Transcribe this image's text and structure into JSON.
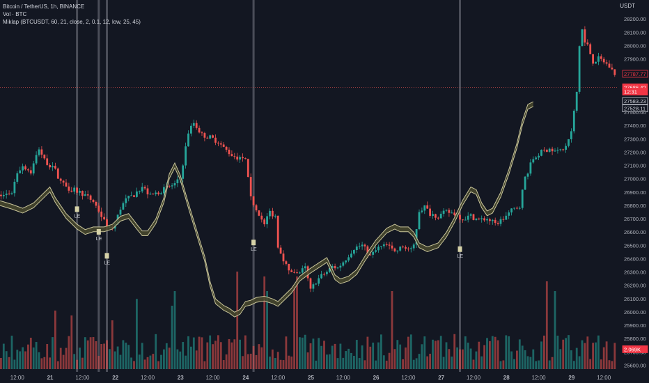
{
  "header": {
    "title_line": "Bitcoin / TetherUS, 1h, BINANCE",
    "volume_line": "Vol · BTC",
    "indicator_line": "Miklap (BTCUSDT, 60, 21, close, 2, 0.1, 12, low, 25, 45)",
    "currency": "USDT"
  },
  "colors": {
    "background": "#131722",
    "up": "#26a69a",
    "down": "#ef5350",
    "band_fill": "#4a4a2e",
    "band_line": "#c8c49a",
    "vline": "#5d606b",
    "label": "#b2b5be"
  },
  "chart_data": {
    "type": "candlestick",
    "title": "Bitcoin / TetherUS, 1h, BINANCE",
    "y_range": [
      25550,
      28300
    ],
    "y_ticks": [
      25600,
      25700,
      25800,
      25900,
      26000,
      26100,
      26200,
      26300,
      26400,
      26500,
      26600,
      26700,
      26800,
      26900,
      27000,
      27100,
      27200,
      27300,
      27400,
      27500,
      27600,
      27700,
      27800,
      27900,
      28000,
      28100,
      28200
    ],
    "x_tick_labels": [
      "12:00",
      "21",
      "12:00",
      "22",
      "12:00",
      "23",
      "12:00",
      "24",
      "12:00",
      "25",
      "12:00",
      "26",
      "12:00",
      "27",
      "12:00",
      "28",
      "12:00",
      "29",
      "12:00"
    ],
    "x_tick_hour_index": [
      12,
      24,
      36,
      48,
      60,
      72,
      84,
      96,
      108,
      120,
      132,
      144,
      156,
      168,
      180,
      192,
      204,
      216,
      228
    ],
    "close_path": [
      [
        0,
        26880
      ],
      [
        6,
        26870
      ],
      [
        10,
        26900
      ],
      [
        12,
        27050
      ],
      [
        14,
        27100
      ],
      [
        17,
        27050
      ],
      [
        20,
        27230
      ],
      [
        22,
        27140
      ],
      [
        26,
        27060
      ],
      [
        28,
        26980
      ],
      [
        31,
        26930
      ],
      [
        36,
        26890
      ],
      [
        38,
        26860
      ],
      [
        40,
        26830
      ],
      [
        42,
        26760
      ],
      [
        44,
        26680
      ],
      [
        46,
        26620
      ],
      [
        48,
        26660
      ],
      [
        50,
        26780
      ],
      [
        52,
        26840
      ],
      [
        55,
        26880
      ],
      [
        58,
        26940
      ],
      [
        61,
        26870
      ],
      [
        64,
        26900
      ],
      [
        67,
        26930
      ],
      [
        70,
        26960
      ],
      [
        72,
        27000
      ],
      [
        75,
        27350
      ],
      [
        77,
        27420
      ],
      [
        80,
        27330
      ],
      [
        83,
        27310
      ],
      [
        86,
        27280
      ],
      [
        88,
        27230
      ],
      [
        91,
        27180
      ],
      [
        94,
        27150
      ],
      [
        96,
        27140
      ],
      [
        98,
        26850
      ],
      [
        101,
        26740
      ],
      [
        103,
        26650
      ],
      [
        105,
        26750
      ],
      [
        107,
        26720
      ],
      [
        108,
        26500
      ],
      [
        110,
        26400
      ],
      [
        112,
        26300
      ],
      [
        115,
        26280
      ],
      [
        118,
        26330
      ],
      [
        120,
        26160
      ],
      [
        122,
        26230
      ],
      [
        124,
        26270
      ],
      [
        126,
        26300
      ],
      [
        128,
        26340
      ],
      [
        130,
        26330
      ],
      [
        133,
        26400
      ],
      [
        136,
        26480
      ],
      [
        139,
        26500
      ],
      [
        142,
        26420
      ],
      [
        145,
        26480
      ],
      [
        148,
        26500
      ],
      [
        151,
        26450
      ],
      [
        154,
        26490
      ],
      [
        157,
        26460
      ],
      [
        158,
        26500
      ],
      [
        160,
        26760
      ],
      [
        162,
        26790
      ],
      [
        164,
        26740
      ],
      [
        167,
        26720
      ],
      [
        170,
        26750
      ],
      [
        173,
        26740
      ],
      [
        176,
        26700
      ],
      [
        179,
        26720
      ],
      [
        182,
        26690
      ],
      [
        185,
        26700
      ],
      [
        188,
        26660
      ],
      [
        191,
        26700
      ],
      [
        194,
        26760
      ],
      [
        197,
        26800
      ],
      [
        199,
        27010
      ],
      [
        202,
        27150
      ],
      [
        205,
        27200
      ],
      [
        208,
        27230
      ],
      [
        211,
        27200
      ],
      [
        214,
        27240
      ],
      [
        216,
        27350
      ],
      [
        218,
        27650
      ],
      [
        219,
        28000
      ],
      [
        220,
        28120
      ],
      [
        221,
        28020
      ],
      [
        222,
        28000
      ],
      [
        224,
        27880
      ],
      [
        226,
        27900
      ],
      [
        228,
        27880
      ],
      [
        230,
        27840
      ],
      [
        232,
        27790
      ]
    ],
    "band_mid": [
      [
        0,
        26820
      ],
      [
        6,
        26815
      ],
      [
        10,
        26790
      ],
      [
        14,
        26760
      ],
      [
        18,
        26800
      ],
      [
        22,
        26880
      ],
      [
        24,
        26920
      ],
      [
        26,
        26840
      ],
      [
        30,
        26720
      ],
      [
        34,
        26640
      ],
      [
        37,
        26600
      ],
      [
        40,
        26620
      ],
      [
        44,
        26620
      ],
      [
        47,
        26640
      ],
      [
        50,
        26700
      ],
      [
        53,
        26720
      ],
      [
        56,
        26640
      ],
      [
        58,
        26590
      ],
      [
        60,
        26590
      ],
      [
        63,
        26680
      ],
      [
        66,
        26840
      ],
      [
        68,
        27020
      ],
      [
        70,
        27100
      ],
      [
        72,
        27010
      ],
      [
        75,
        26800
      ],
      [
        78,
        26600
      ],
      [
        81,
        26400
      ],
      [
        83,
        26210
      ],
      [
        85,
        26080
      ],
      [
        88,
        26030
      ],
      [
        90,
        26010
      ],
      [
        92,
        25980
      ],
      [
        94,
        26000
      ],
      [
        96,
        26060
      ],
      [
        98,
        26070
      ],
      [
        100,
        26090
      ],
      [
        103,
        26100
      ],
      [
        106,
        26080
      ],
      [
        108,
        26060
      ],
      [
        110,
        26100
      ],
      [
        113,
        26160
      ],
      [
        116,
        26250
      ],
      [
        118,
        26280
      ],
      [
        120,
        26310
      ],
      [
        123,
        26350
      ],
      [
        126,
        26390
      ],
      [
        129,
        26260
      ],
      [
        131,
        26230
      ],
      [
        134,
        26250
      ],
      [
        137,
        26300
      ],
      [
        140,
        26400
      ],
      [
        144,
        26520
      ],
      [
        148,
        26610
      ],
      [
        151,
        26640
      ],
      [
        153,
        26620
      ],
      [
        156,
        26620
      ],
      [
        158,
        26580
      ],
      [
        160,
        26500
      ],
      [
        163,
        26470
      ],
      [
        167,
        26500
      ],
      [
        170,
        26580
      ],
      [
        173,
        26690
      ],
      [
        176,
        26820
      ],
      [
        179,
        26920
      ],
      [
        181,
        26900
      ],
      [
        183,
        26800
      ],
      [
        185,
        26740
      ],
      [
        187,
        26760
      ],
      [
        190,
        26880
      ],
      [
        193,
        27050
      ],
      [
        196,
        27250
      ],
      [
        198,
        27420
      ],
      [
        200,
        27540
      ],
      [
        202,
        27560
      ]
    ],
    "band_width": 36,
    "band_x_scale": 1.0,
    "vertical_lines_x_index": [
      34,
      42,
      45,
      99,
      175
    ],
    "le_markers": [
      {
        "x": 34,
        "y": 26740,
        "label": "LE"
      },
      {
        "x": 42,
        "y": 26570,
        "label": "LE"
      },
      {
        "x": 45,
        "y": 26390,
        "label": "LE"
      },
      {
        "x": 99,
        "y": 26490,
        "label": "LE"
      },
      {
        "x": 175,
        "y": 26440,
        "label": "LE"
      }
    ],
    "price_tags": [
      {
        "price": 27787.77,
        "text": "27787.77",
        "style": "red-outline"
      },
      {
        "price": 27686.42,
        "text": "27686.42",
        "style": "red-fill"
      },
      {
        "price": 27654.0,
        "text": "12:31",
        "style": "red-fill"
      },
      {
        "price": 27583.23,
        "text": "27583.23",
        "style": "white-outline"
      },
      {
        "price": 27528.11,
        "text": "27528.11",
        "style": "white-outline"
      },
      {
        "price": 25720.0,
        "text": "2.069K",
        "style": "red-fill"
      }
    ],
    "current_price_line": 27686.42,
    "volume_spikes": [
      {
        "x": 26,
        "h": 0.6
      },
      {
        "x": 32,
        "h": 0.55
      },
      {
        "x": 47,
        "h": 0.5
      },
      {
        "x": 56,
        "h": 0.72
      },
      {
        "x": 69,
        "h": 0.65
      },
      {
        "x": 70,
        "h": 0.8
      },
      {
        "x": 93,
        "h": 1.0
      },
      {
        "x": 103,
        "h": 0.95
      },
      {
        "x": 104,
        "h": 0.8
      },
      {
        "x": 114,
        "h": 0.85
      },
      {
        "x": 115,
        "h": 0.95
      },
      {
        "x": 150,
        "h": 0.8
      },
      {
        "x": 207,
        "h": 0.9
      },
      {
        "x": 210,
        "h": 0.8
      }
    ]
  }
}
